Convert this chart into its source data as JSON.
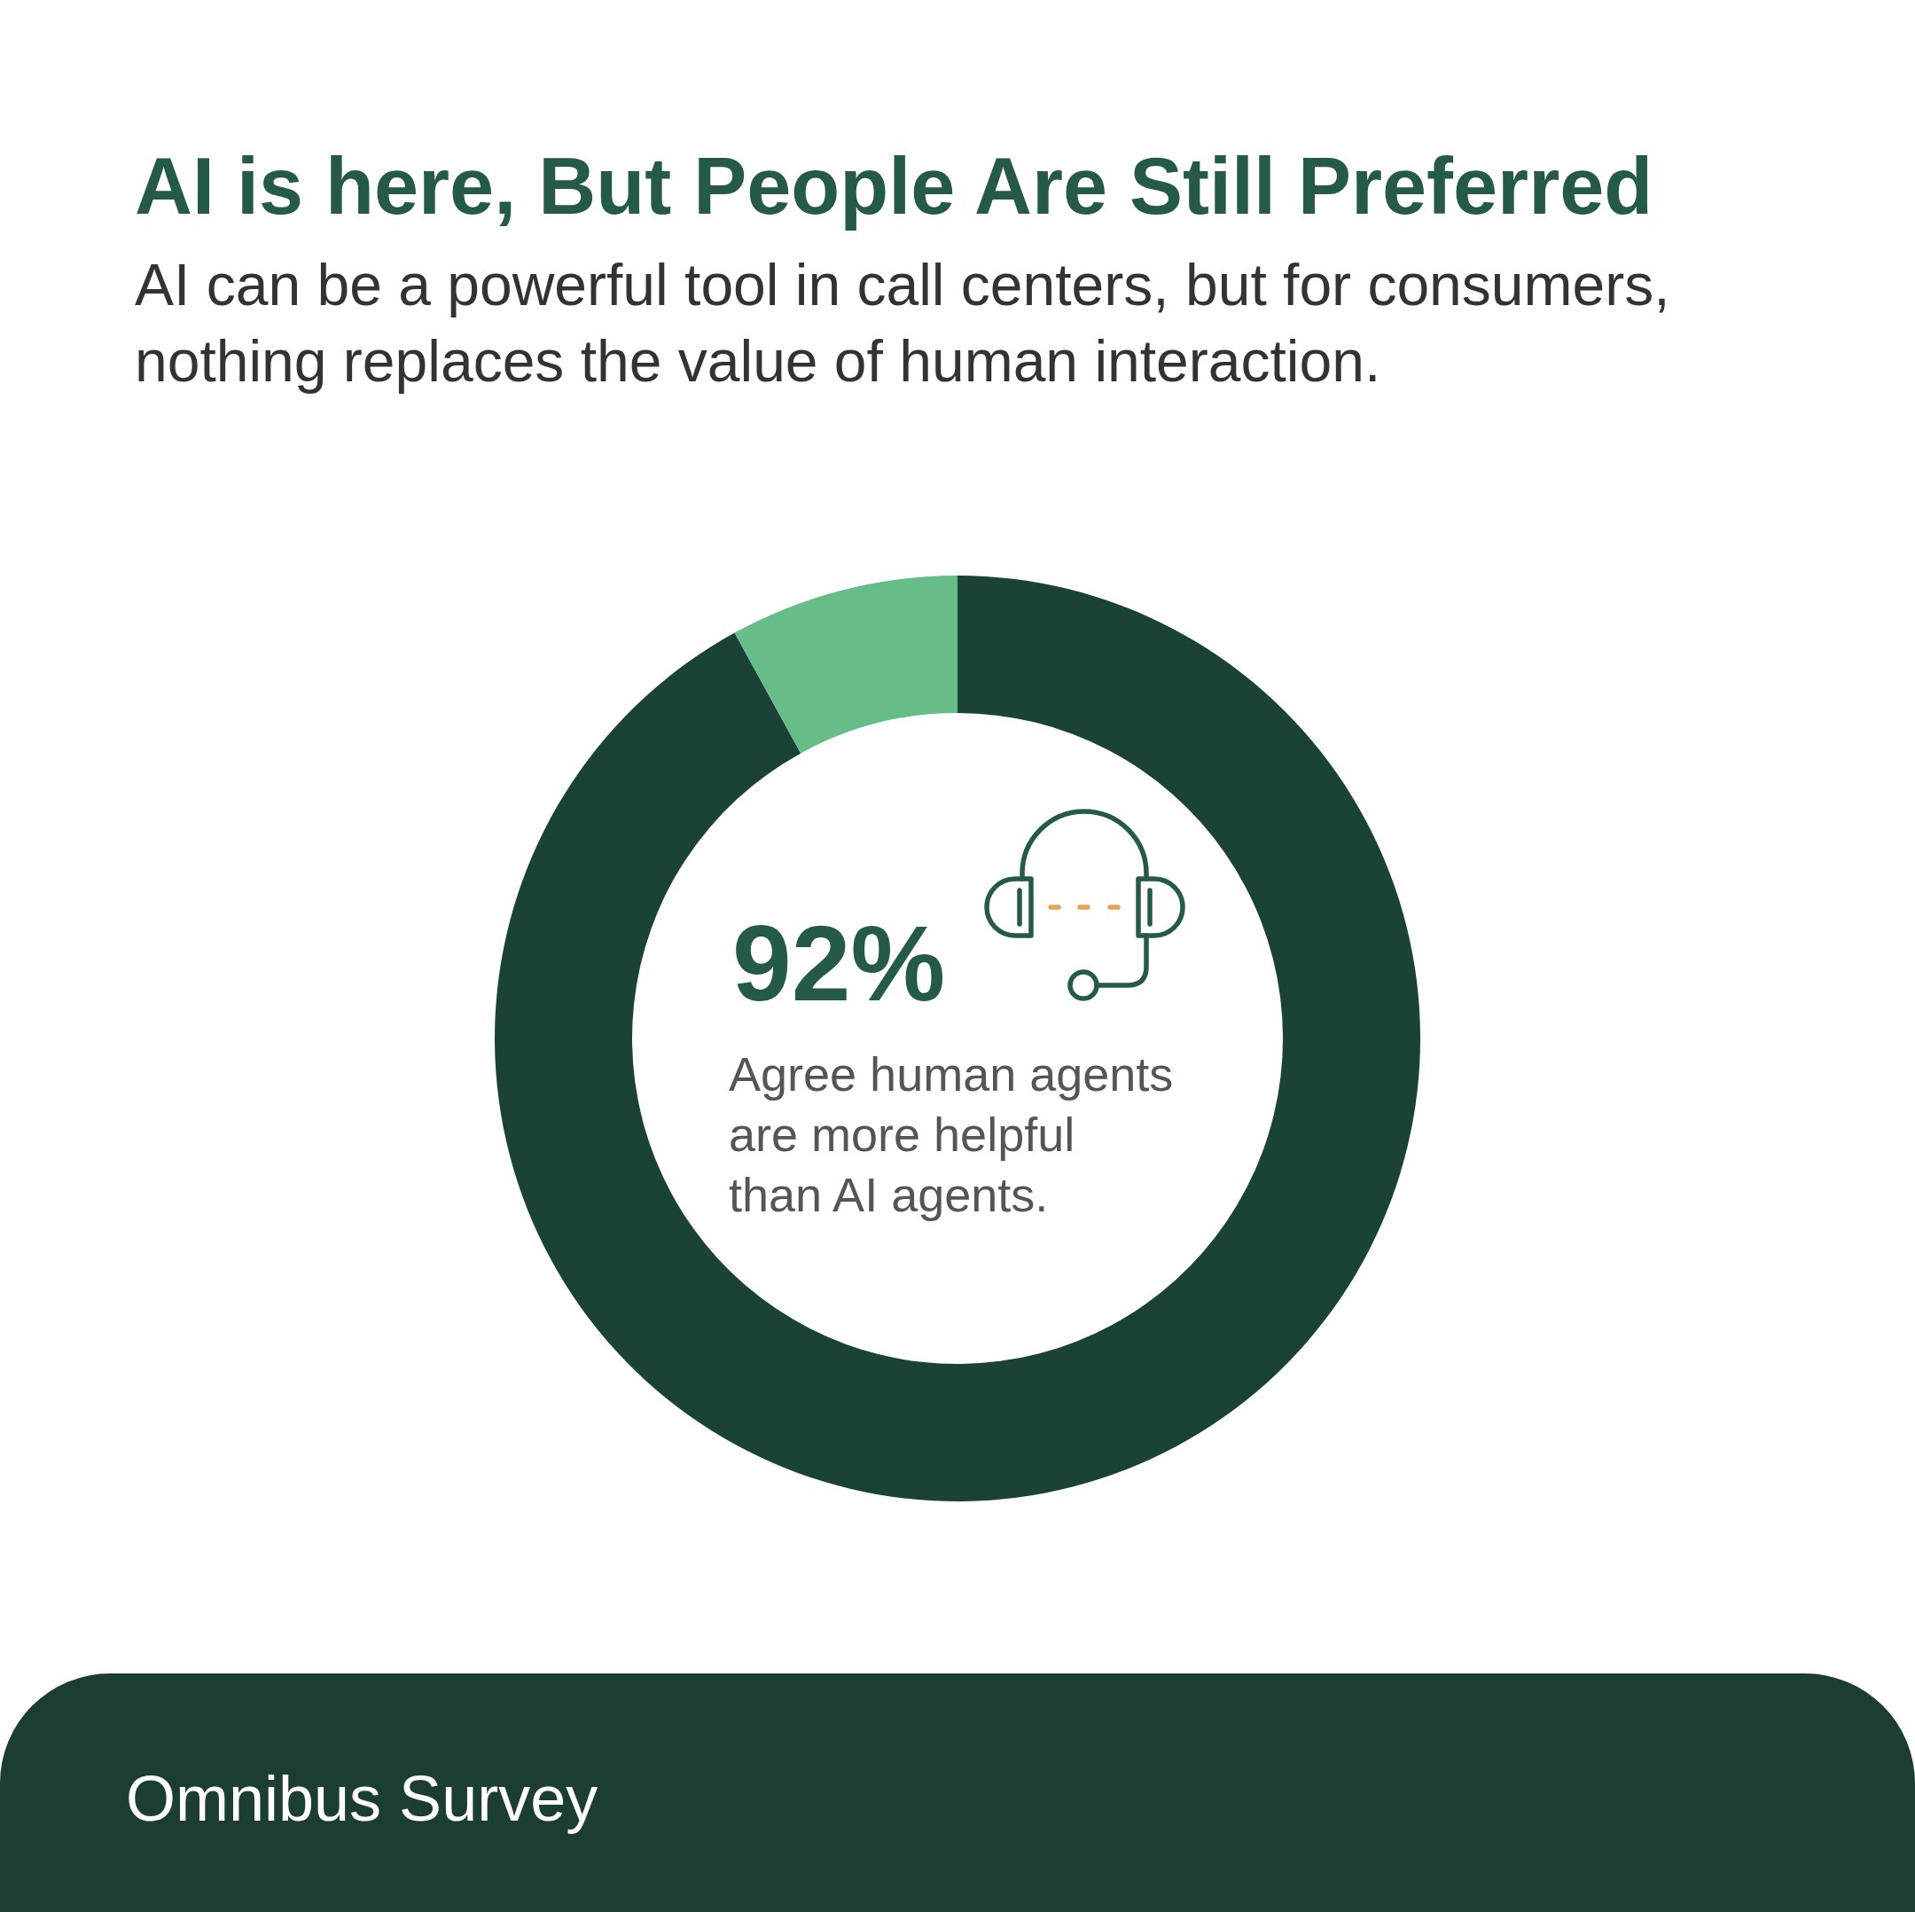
{
  "chart_data": {
    "type": "donut",
    "title": "AI is here, But People Are Still Preferred",
    "subtitle": "AI can be a powerful tool in call centers, but for consumers, nothing replaces the value of human interaction.",
    "categories": [
      null,
      null
    ],
    "values": [
      92,
      8
    ],
    "colors": [
      "#1b4236",
      "#66bd87"
    ],
    "annotations": [
      "92%",
      "Agree human agents are more helpful than AI agents.",
      "Omnibus Survey"
    ]
  }
}
